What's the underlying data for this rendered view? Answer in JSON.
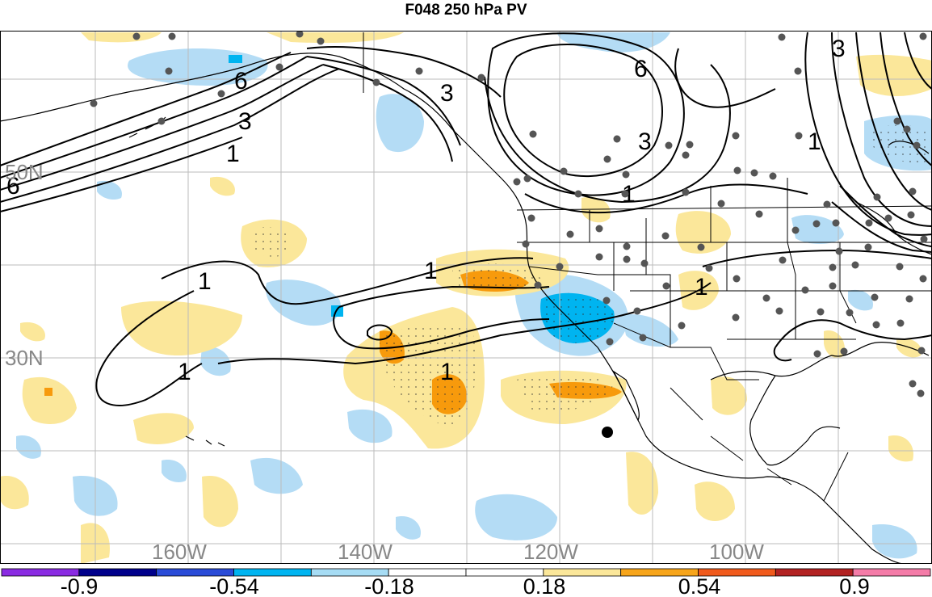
{
  "title": "F048 250 hPa PV",
  "lat_labels": [
    "50N",
    "30N"
  ],
  "lon_labels": [
    "160W",
    "140W",
    "120W",
    "100W"
  ],
  "contour_labels": [
    "6",
    "3",
    "1"
  ],
  "colorbar": {
    "colors": [
      "#8a2be2",
      "#00008b",
      "#2a4bd7",
      "#00b4f0",
      "#a6dcf4",
      "#ffffff",
      "#ffffff",
      "#fbe79a",
      "#f7a51b",
      "#f05a1c",
      "#b22222",
      "#f47ca8"
    ],
    "labels": [
      "-0.9",
      "-0.54",
      "-0.18",
      "0.18",
      "0.54",
      "0.9"
    ]
  },
  "colors": {
    "light_blue": "#b4dcf5",
    "mid_blue": "#00b4f0",
    "light_yellow": "#fbe79a",
    "orange": "#f79a0c",
    "contour": "#000000",
    "grid": "#bbbbbb",
    "station_dot": "#555555"
  }
}
